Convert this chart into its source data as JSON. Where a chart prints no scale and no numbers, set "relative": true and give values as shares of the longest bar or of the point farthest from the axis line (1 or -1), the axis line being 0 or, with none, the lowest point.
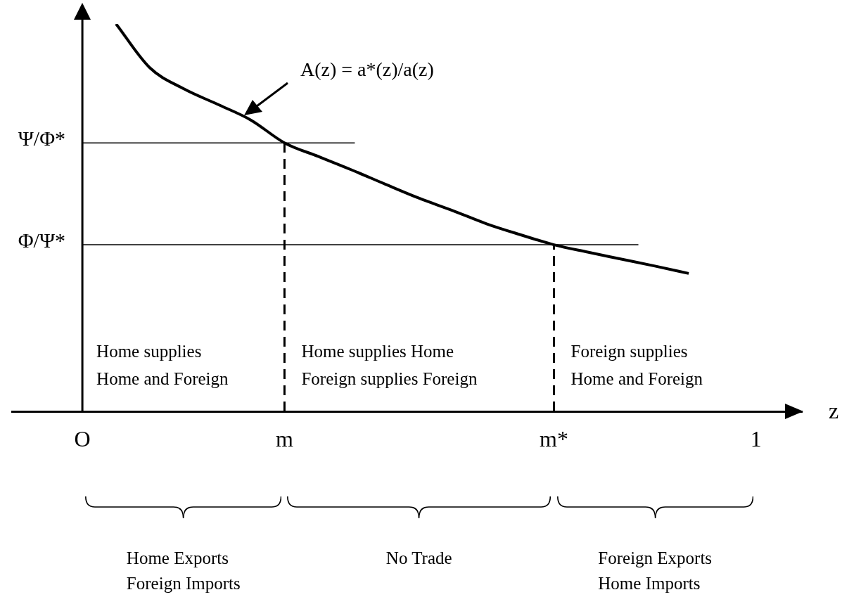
{
  "chart_data": {
    "type": "line",
    "relative": true,
    "xlabel": "z",
    "categories": [
      "O",
      null,
      null,
      null,
      null,
      null,
      "m",
      null,
      null,
      null,
      null,
      null,
      null,
      null,
      "m*",
      null,
      null,
      null,
      null,
      null,
      "1",
      null
    ],
    "series": [
      {
        "color": "#000000",
        "values": [
          null,
          1.0,
          0.887,
          0.833,
          0.793,
          0.752,
          0.693,
          0.658,
          0.623,
          0.586,
          0.55,
          0.518,
          0.484,
          0.456,
          0.43,
          0.411,
          0.393,
          0.375,
          0.356,
          null,
          null,
          null
        ]
      }
    ],
    "marker": "none",
    "line_style": "solid",
    "ref_lines": [
      {
        "axis": "y",
        "value": 0.693,
        "label": "Ψ/Φ*",
        "color": "#000000",
        "line_style": "solid"
      },
      {
        "axis": "y",
        "value": 0.43,
        "label": "Φ/Ψ*",
        "color": "#000000",
        "line_style": "solid"
      },
      {
        "axis": "x",
        "value": "m",
        "color": "#000000",
        "line_style": "dashed"
      },
      {
        "axis": "x",
        "value": "m*",
        "color": "#000000",
        "line_style": "dashed"
      }
    ],
    "annotations": [
      "A(z) = a*(z)/a(z)",
      "Home supplies\nHome and Foreign",
      "Home supplies Home\nForeign supplies Foreign",
      "Foreign supplies\nHome and Foreign",
      "Home Exports\nForeign Imports",
      "No Trade",
      "Foreign Exports\nHome Imports"
    ]
  }
}
